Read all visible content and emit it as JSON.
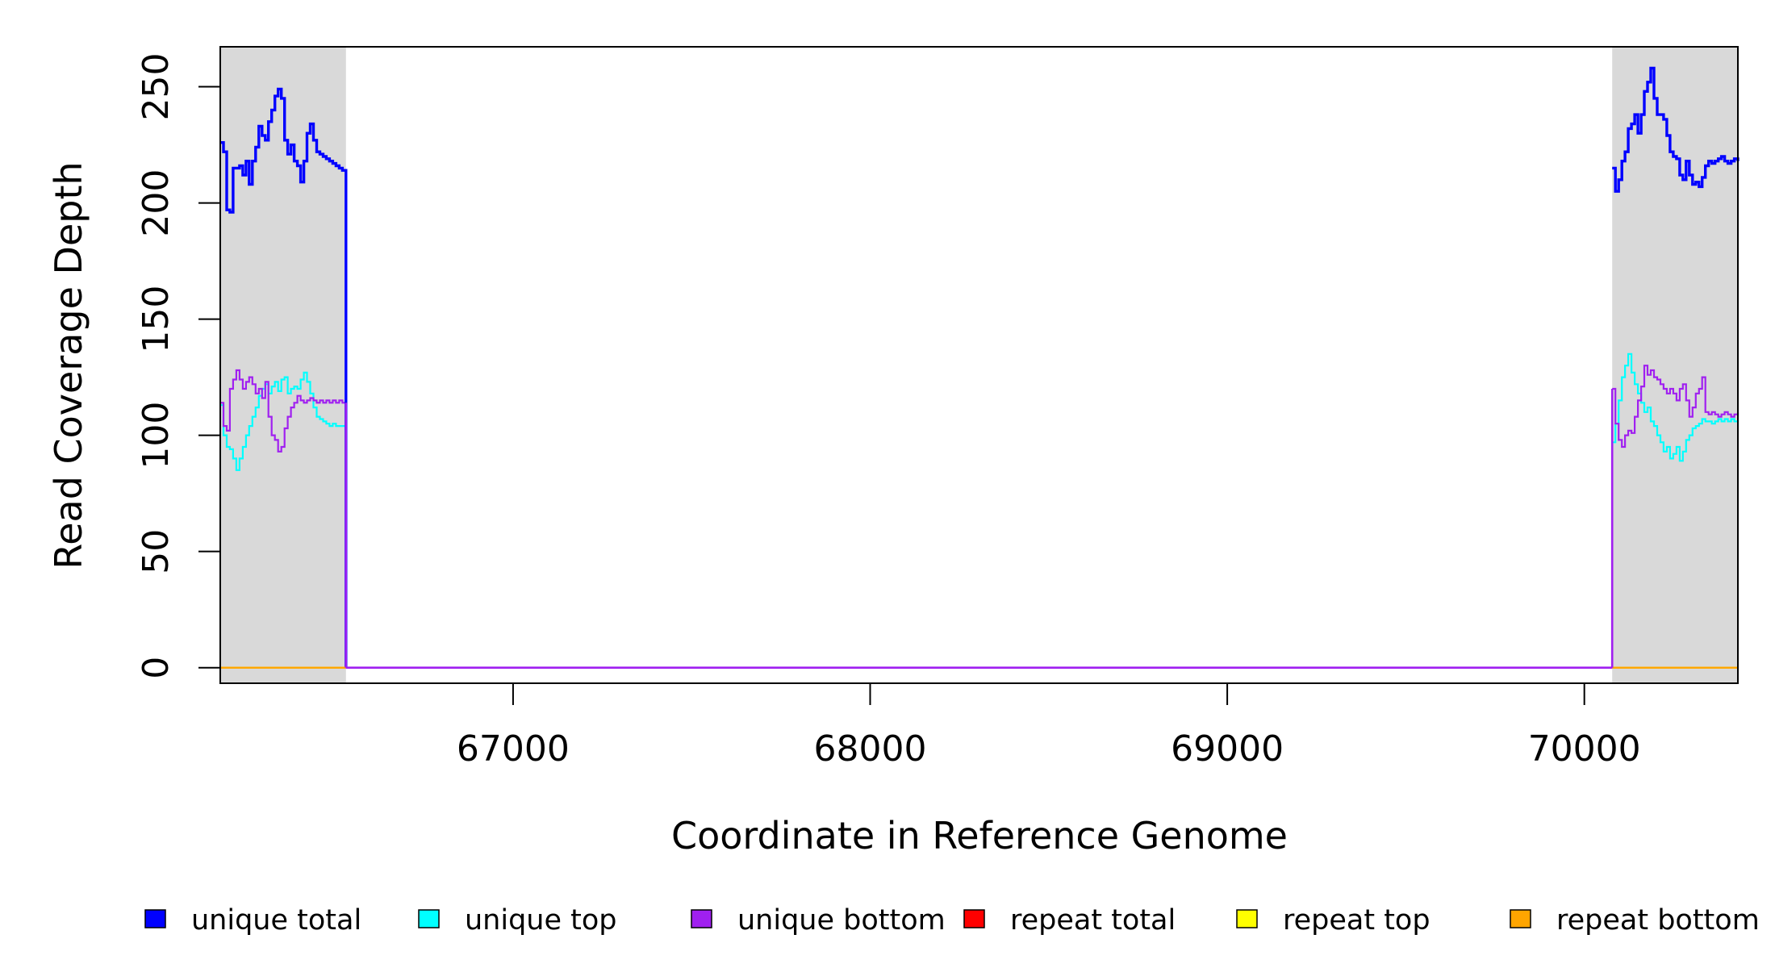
{
  "chart_data": {
    "type": "line",
    "step": true,
    "xlabel": "Coordinate in Reference Genome",
    "ylabel": "Read Coverage Depth",
    "xlim": [
      66180,
      70430
    ],
    "ylim": [
      -6.7,
      267.2
    ],
    "xticks": [
      67000,
      68000,
      69000,
      70000
    ],
    "yticks": [
      0,
      50,
      100,
      150,
      200,
      250
    ],
    "grid": false,
    "legend_position": "bottom",
    "shaded_regions": [
      {
        "x0": 66180,
        "x1": 66532,
        "color": "#d9d9d9"
      },
      {
        "x0": 70078,
        "x1": 70430,
        "color": "#d9d9d9"
      }
    ],
    "gap": [
      66532,
      70078
    ],
    "series": [
      {
        "name": "unique total",
        "color": "#0000ff",
        "width": 3.4,
        "segments": [
          [
            [
              66180,
              226
            ],
            [
              66189,
              222
            ],
            [
              66198,
              197
            ],
            [
              66207,
              196
            ],
            [
              66216,
              215
            ],
            [
              66225,
              215
            ],
            [
              66234,
              216
            ],
            [
              66243,
              212
            ],
            [
              66252,
              218
            ],
            [
              66261,
              208
            ],
            [
              66270,
              218
            ],
            [
              66279,
              224
            ],
            [
              66288,
              233
            ],
            [
              66297,
              229
            ],
            [
              66306,
              227
            ],
            [
              66315,
              235
            ],
            [
              66324,
              240
            ],
            [
              66333,
              246
            ],
            [
              66342,
              249
            ],
            [
              66351,
              245
            ],
            [
              66360,
              227
            ],
            [
              66369,
              221
            ],
            [
              66378,
              225
            ],
            [
              66387,
              218
            ],
            [
              66396,
              216
            ],
            [
              66405,
              209
            ],
            [
              66414,
              218
            ],
            [
              66423,
              230
            ],
            [
              66432,
              234
            ],
            [
              66441,
              227
            ],
            [
              66450,
              222
            ],
            [
              66459,
              221
            ],
            [
              66468,
              220
            ],
            [
              66477,
              219
            ],
            [
              66486,
              218
            ],
            [
              66495,
              217
            ],
            [
              66504,
              216
            ],
            [
              66513,
              215
            ],
            [
              66522,
              214
            ],
            [
              66532,
              0
            ]
          ],
          [
            [
              70078,
              215
            ],
            [
              70087,
              205
            ],
            [
              70096,
              210
            ],
            [
              70105,
              218
            ],
            [
              70114,
              222
            ],
            [
              70123,
              232
            ],
            [
              70132,
              234
            ],
            [
              70141,
              238
            ],
            [
              70150,
              230
            ],
            [
              70159,
              238
            ],
            [
              70168,
              248
            ],
            [
              70177,
              252
            ],
            [
              70186,
              258
            ],
            [
              70195,
              245
            ],
            [
              70204,
              238
            ],
            [
              70213,
              238
            ],
            [
              70222,
              236
            ],
            [
              70231,
              229
            ],
            [
              70240,
              222
            ],
            [
              70249,
              220
            ],
            [
              70258,
              219
            ],
            [
              70267,
              212
            ],
            [
              70276,
              210
            ],
            [
              70285,
              218
            ],
            [
              70294,
              212
            ],
            [
              70303,
              208
            ],
            [
              70312,
              209
            ],
            [
              70321,
              207
            ],
            [
              70330,
              211
            ],
            [
              70339,
              216
            ],
            [
              70348,
              218
            ],
            [
              70357,
              217
            ],
            [
              70366,
              218
            ],
            [
              70375,
              219
            ],
            [
              70384,
              220
            ],
            [
              70393,
              218
            ],
            [
              70402,
              217
            ],
            [
              70411,
              218
            ],
            [
              70420,
              219
            ],
            [
              70430,
              218
            ]
          ]
        ]
      },
      {
        "name": "unique top",
        "color": "#00ffff",
        "width": 2.2,
        "segments": [
          [
            [
              66180,
              113
            ],
            [
              66189,
              100
            ],
            [
              66198,
              95
            ],
            [
              66207,
              94
            ],
            [
              66216,
              90
            ],
            [
              66225,
              85
            ],
            [
              66234,
              90
            ],
            [
              66243,
              95
            ],
            [
              66252,
              100
            ],
            [
              66261,
              104
            ],
            [
              66270,
              108
            ],
            [
              66279,
              112
            ],
            [
              66288,
              117
            ],
            [
              66297,
              120
            ],
            [
              66306,
              122
            ],
            [
              66315,
              118
            ],
            [
              66324,
              121
            ],
            [
              66333,
              123
            ],
            [
              66342,
              119
            ],
            [
              66351,
              124
            ],
            [
              66360,
              125
            ],
            [
              66369,
              118
            ],
            [
              66378,
              120
            ],
            [
              66387,
              121
            ],
            [
              66396,
              120
            ],
            [
              66405,
              124
            ],
            [
              66414,
              127
            ],
            [
              66423,
              123
            ],
            [
              66432,
              118
            ],
            [
              66441,
              112
            ],
            [
              66450,
              108
            ],
            [
              66459,
              107
            ],
            [
              66468,
              106
            ],
            [
              66477,
              105
            ],
            [
              66486,
              104
            ],
            [
              66495,
              105
            ],
            [
              66504,
              104
            ],
            [
              66513,
              104
            ],
            [
              66522,
              104
            ],
            [
              66532,
              0
            ]
          ],
          [
            [
              70078,
              97
            ],
            [
              70087,
              105
            ],
            [
              70096,
              115
            ],
            [
              70105,
              125
            ],
            [
              70114,
              130
            ],
            [
              70123,
              135
            ],
            [
              70132,
              127
            ],
            [
              70141,
              122
            ],
            [
              70150,
              118
            ],
            [
              70159,
              114
            ],
            [
              70168,
              110
            ],
            [
              70177,
              112
            ],
            [
              70186,
              106
            ],
            [
              70195,
              104
            ],
            [
              70204,
              100
            ],
            [
              70213,
              97
            ],
            [
              70222,
              93
            ],
            [
              70231,
              95
            ],
            [
              70240,
              90
            ],
            [
              70249,
              92
            ],
            [
              70258,
              95
            ],
            [
              70267,
              89
            ],
            [
              70276,
              93
            ],
            [
              70285,
              98
            ],
            [
              70294,
              100
            ],
            [
              70303,
              103
            ],
            [
              70312,
              104
            ],
            [
              70321,
              105
            ],
            [
              70330,
              107
            ],
            [
              70339,
              106
            ],
            [
              70348,
              106
            ],
            [
              70357,
              105
            ],
            [
              70366,
              106
            ],
            [
              70375,
              107
            ],
            [
              70384,
              106
            ],
            [
              70393,
              107
            ],
            [
              70402,
              106
            ],
            [
              70411,
              107
            ],
            [
              70420,
              106
            ],
            [
              70430,
              106
            ]
          ]
        ]
      },
      {
        "name": "unique bottom",
        "color": "#a020f0",
        "width": 2.2,
        "segments": [
          [
            [
              66180,
              114
            ],
            [
              66189,
              104
            ],
            [
              66198,
              102
            ],
            [
              66207,
              120
            ],
            [
              66216,
              124
            ],
            [
              66225,
              128
            ],
            [
              66234,
              124
            ],
            [
              66243,
              120
            ],
            [
              66252,
              123
            ],
            [
              66261,
              125
            ],
            [
              66270,
              122
            ],
            [
              66279,
              118
            ],
            [
              66288,
              120
            ],
            [
              66297,
              116
            ],
            [
              66306,
              123
            ],
            [
              66315,
              108
            ],
            [
              66324,
              100
            ],
            [
              66333,
              98
            ],
            [
              66342,
              93
            ],
            [
              66351,
              95
            ],
            [
              66360,
              103
            ],
            [
              66369,
              108
            ],
            [
              66378,
              112
            ],
            [
              66387,
              114
            ],
            [
              66396,
              117
            ],
            [
              66405,
              115
            ],
            [
              66414,
              114
            ],
            [
              66423,
              115
            ],
            [
              66432,
              116
            ],
            [
              66441,
              115
            ],
            [
              66450,
              114
            ],
            [
              66459,
              115
            ],
            [
              66468,
              114
            ],
            [
              66477,
              115
            ],
            [
              66486,
              114
            ],
            [
              66495,
              115
            ],
            [
              66504,
              114
            ],
            [
              66513,
              115
            ],
            [
              66522,
              114
            ],
            [
              66532,
              0
            ]
          ],
          [
            [
              70078,
              120
            ],
            [
              70087,
              105
            ],
            [
              70096,
              98
            ],
            [
              70105,
              95
            ],
            [
              70114,
              100
            ],
            [
              70123,
              102
            ],
            [
              70132,
              101
            ],
            [
              70141,
              108
            ],
            [
              70150,
              115
            ],
            [
              70159,
              121
            ],
            [
              70168,
              130
            ],
            [
              70177,
              126
            ],
            [
              70186,
              128
            ],
            [
              70195,
              125
            ],
            [
              70204,
              124
            ],
            [
              70213,
              122
            ],
            [
              70222,
              120
            ],
            [
              70231,
              118
            ],
            [
              70240,
              120
            ],
            [
              70249,
              118
            ],
            [
              70258,
              115
            ],
            [
              70267,
              120
            ],
            [
              70276,
              122
            ],
            [
              70285,
              115
            ],
            [
              70294,
              108
            ],
            [
              70303,
              112
            ],
            [
              70312,
              118
            ],
            [
              70321,
              120
            ],
            [
              70330,
              125
            ],
            [
              70339,
              110
            ],
            [
              70348,
              109
            ],
            [
              70357,
              110
            ],
            [
              70366,
              109
            ],
            [
              70375,
              108
            ],
            [
              70384,
              109
            ],
            [
              70393,
              110
            ],
            [
              70402,
              109
            ],
            [
              70411,
              108
            ],
            [
              70420,
              109
            ],
            [
              70430,
              110
            ]
          ]
        ]
      },
      {
        "name": "repeat total",
        "color": "#ff0000",
        "width": 2.2,
        "segments": [
          [
            [
              66180,
              0
            ],
            [
              70430,
              0
            ]
          ]
        ]
      },
      {
        "name": "repeat top",
        "color": "#ffff00",
        "width": 2.2,
        "segments": [
          [
            [
              66180,
              0
            ],
            [
              70430,
              0
            ]
          ]
        ]
      },
      {
        "name": "repeat bottom",
        "color": "#ffa500",
        "width": 2.2,
        "segments": [
          [
            [
              66180,
              0
            ],
            [
              66532,
              0
            ]
          ],
          [
            [
              70078,
              0
            ],
            [
              70430,
              0
            ]
          ]
        ]
      }
    ]
  }
}
